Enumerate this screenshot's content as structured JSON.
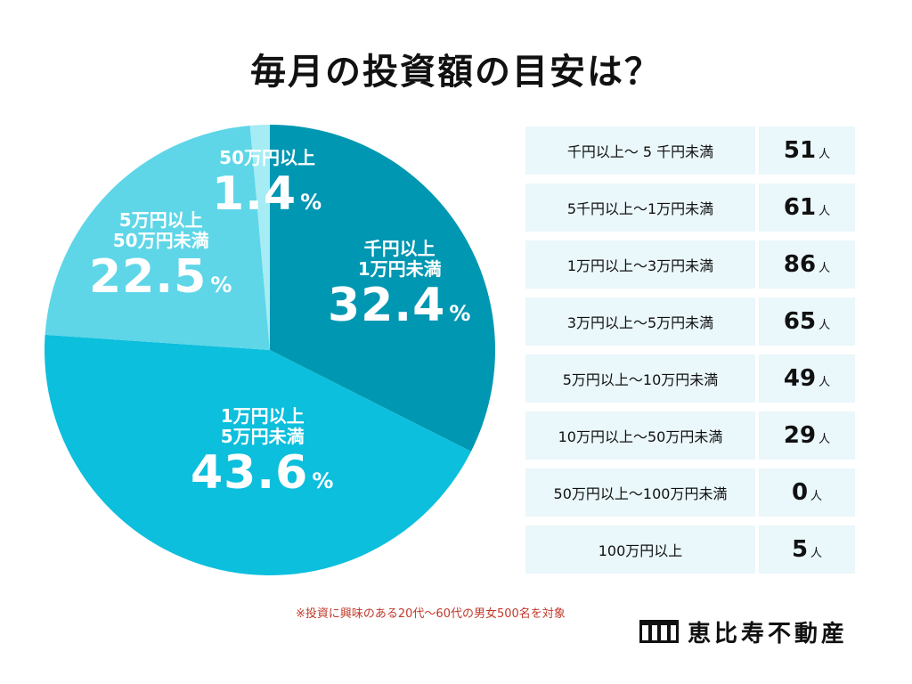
{
  "title": "毎月の投資額の目安は？",
  "chart_data": {
    "type": "pie",
    "slices": [
      {
        "label_line1": "千円以上",
        "label_line2": "1万円未満",
        "value": 32.4,
        "color": "#0097b2"
      },
      {
        "label_line1": "1万円以上",
        "label_line2": "5万円未満",
        "value": 43.6,
        "color": "#0cbfdc"
      },
      {
        "label_line1": "5万円以上",
        "label_line2": "50万円未満",
        "value": 22.5,
        "color": "#5ed6e8"
      },
      {
        "label_line1": "50万円以上",
        "label_line2": "",
        "value": 1.4,
        "color": "#a6ecf4"
      }
    ],
    "percent_sign": "%"
  },
  "table": {
    "rows": [
      {
        "range": "千円以上〜 5 千円未満",
        "count": "51",
        "unit": "人"
      },
      {
        "range": "5千円以上〜1万円未満",
        "count": "61",
        "unit": "人"
      },
      {
        "range": "1万円以上〜3万円未満",
        "count": "86",
        "unit": "人"
      },
      {
        "range": "3万円以上〜5万円未満",
        "count": "65",
        "unit": "人"
      },
      {
        "range": "5万円以上〜10万円未満",
        "count": "49",
        "unit": "人"
      },
      {
        "range": "10万円以上〜50万円未満",
        "count": "29",
        "unit": "人"
      },
      {
        "range": "50万円以上〜100万円未満",
        "count": "0",
        "unit": "人"
      },
      {
        "range": "100万円以上",
        "count": "5",
        "unit": "人"
      }
    ]
  },
  "note": "※投資に興味のある20代〜60代の男女500名を対象",
  "logo": {
    "brand": "恵比寿不動産",
    "icon": "building-logo-icon"
  }
}
